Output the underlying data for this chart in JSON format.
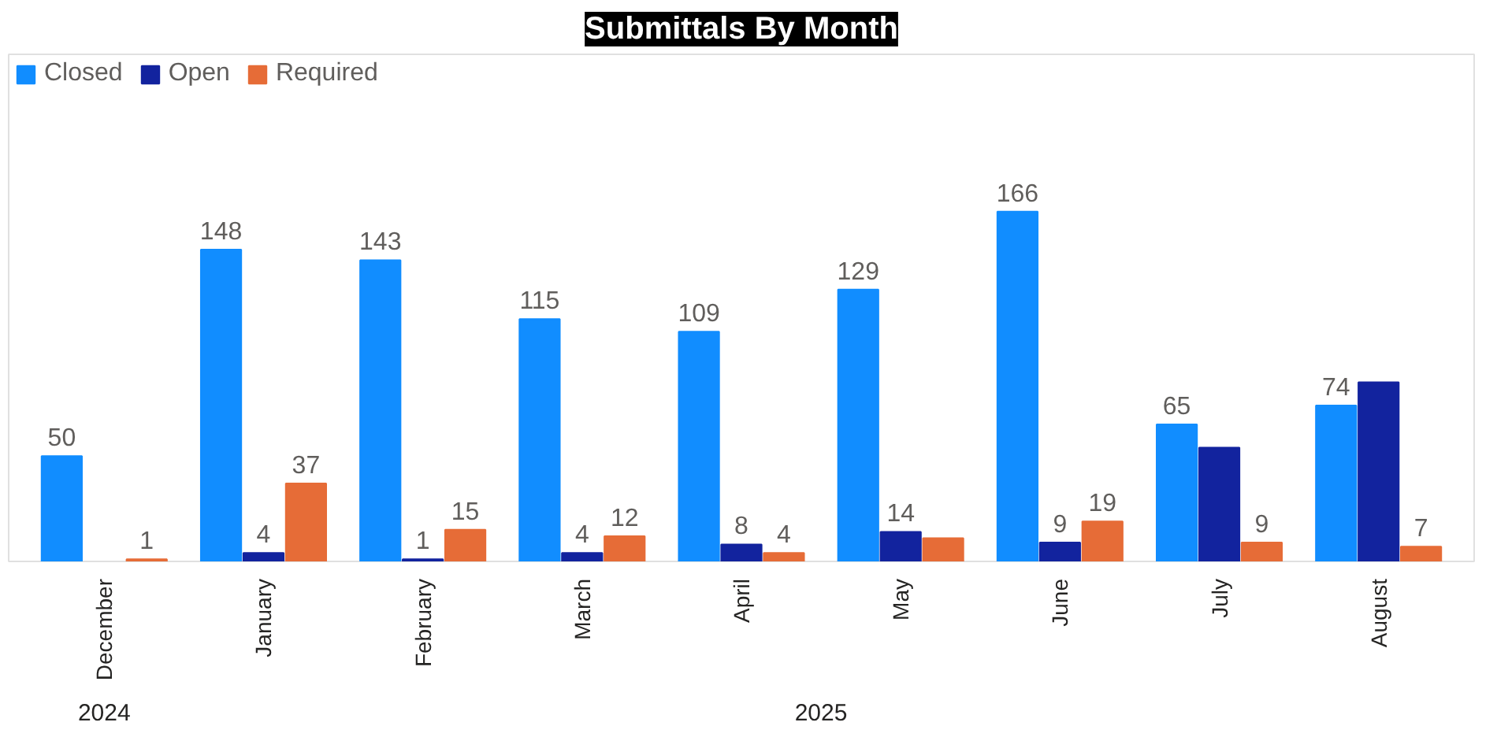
{
  "chart_data": {
    "type": "bar",
    "title": "Submittals By Month",
    "categories": [
      "December",
      "January",
      "February",
      "March",
      "April",
      "May",
      "June",
      "July",
      "August"
    ],
    "series": [
      {
        "name": "Closed",
        "color": "#118dff",
        "values": [
          50,
          148,
          143,
          115,
          109,
          129,
          166,
          65,
          74
        ],
        "value_labels": [
          "50",
          "148",
          "143",
          "115",
          "109",
          "129",
          "166",
          "65",
          "74"
        ]
      },
      {
        "name": "Open",
        "color": "#12239e",
        "values": [
          null,
          4,
          1,
          4,
          8,
          14,
          9,
          54,
          85
        ],
        "value_labels": [
          null,
          "4",
          "1",
          "4",
          "8",
          "14",
          "9",
          null,
          null
        ]
      },
      {
        "name": "Required",
        "color": "#e66c37",
        "values": [
          1,
          37,
          15,
          12,
          4,
          11,
          19,
          9,
          7
        ],
        "value_labels": [
          "1",
          "37",
          "15",
          "12",
          "4",
          null,
          "19",
          "9",
          "7"
        ]
      }
    ],
    "annotations": [
      "2024",
      "2025"
    ],
    "legend": "top left"
  }
}
